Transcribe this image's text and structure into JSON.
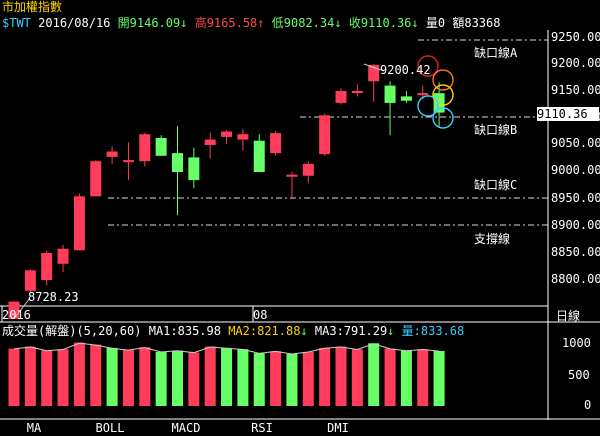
{
  "title": "市加權指數",
  "quote": {
    "symbol": "$TWT",
    "date": "2016/08/16",
    "open_label": "開",
    "open": "9146.09",
    "high_label": "高",
    "high": "9165.58",
    "low_label": "低",
    "low": "9082.34",
    "close_label": "收",
    "close": "9110.36",
    "volume_label": "量0",
    "amount_label": "額83368"
  },
  "price_axis": [
    "9250.00",
    "9200.00",
    "9150.00",
    "9100.00",
    "9050.00",
    "9000.00",
    "8950.00",
    "8900.00",
    "8850.00",
    "8800.00"
  ],
  "current_price": "9110.36",
  "annotations": {
    "gap_a": "缺口線A",
    "gap_b": "缺口線B",
    "gap_c": "缺口線C",
    "support": "支撐線",
    "peak": "9200.42",
    "low_point": "8728.23"
  },
  "x_axis": {
    "year": "2016",
    "month": "08"
  },
  "period": "日線",
  "volume_panel": {
    "title": "成交量(解盤)(5,20,60)",
    "ma1": "MA1:835.98",
    "ma2": "MA2:821.88",
    "ma3": "MA3:791.29",
    "vol": "量:833.68",
    "axis": [
      "1000",
      "500",
      "0"
    ]
  },
  "tabs": [
    "MA",
    "BOLL",
    "MACD",
    "RSI",
    "DMI"
  ],
  "colors": {
    "up": "#ff3c5a",
    "down": "#66ff66",
    "bg": "#000000",
    "accent": "#ffd400"
  },
  "chart_data": {
    "type": "candlestick",
    "ylim": [
      8700,
      9270
    ],
    "candles": [
      {
        "o": 8728,
        "h": 8760,
        "l": 8728,
        "c": 8760
      },
      {
        "o": 8780,
        "h": 8820,
        "l": 8775,
        "c": 8818
      },
      {
        "o": 8800,
        "h": 8855,
        "l": 8790,
        "c": 8850
      },
      {
        "o": 8830,
        "h": 8865,
        "l": 8815,
        "c": 8858
      },
      {
        "o": 8855,
        "h": 8960,
        "l": 8855,
        "c": 8955
      },
      {
        "o": 8955,
        "h": 9022,
        "l": 8955,
        "c": 9020
      },
      {
        "o": 9028,
        "h": 9048,
        "l": 9015,
        "c": 9038
      },
      {
        "o": 9020,
        "h": 9055,
        "l": 8985,
        "c": 9022
      },
      {
        "o": 9020,
        "h": 9073,
        "l": 9010,
        "c": 9070
      },
      {
        "o": 9063,
        "h": 9068,
        "l": 9035,
        "c": 9030
      },
      {
        "o": 9035,
        "h": 9085,
        "l": 8920,
        "c": 9000
      },
      {
        "o": 9027,
        "h": 9045,
        "l": 8970,
        "c": 8985
      },
      {
        "o": 9050,
        "h": 9073,
        "l": 9025,
        "c": 9060
      },
      {
        "o": 9065,
        "h": 9078,
        "l": 9052,
        "c": 9075
      },
      {
        "o": 9060,
        "h": 9080,
        "l": 9040,
        "c": 9070
      },
      {
        "o": 9058,
        "h": 9070,
        "l": 9000,
        "c": 9000
      },
      {
        "o": 9035,
        "h": 9075,
        "l": 9030,
        "c": 9072
      },
      {
        "o": 8995,
        "h": 9000,
        "l": 8950,
        "c": 8995
      },
      {
        "o": 8993,
        "h": 9020,
        "l": 8980,
        "c": 9015
      },
      {
        "o": 9033,
        "h": 9108,
        "l": 9030,
        "c": 9105
      },
      {
        "o": 9128,
        "h": 9155,
        "l": 9125,
        "c": 9150
      },
      {
        "o": 9150,
        "h": 9162,
        "l": 9140,
        "c": 9150
      },
      {
        "o": 9168,
        "h": 9200,
        "l": 9130,
        "c": 9198
      },
      {
        "o": 9160,
        "h": 9168,
        "l": 9068,
        "c": 9128
      },
      {
        "o": 9140,
        "h": 9150,
        "l": 9128,
        "c": 9132
      },
      {
        "o": 9143,
        "h": 9160,
        "l": 9135,
        "c": 9146
      },
      {
        "o": 9146,
        "h": 9166,
        "l": 9082,
        "c": 9110
      }
    ],
    "volume": [
      870,
      900,
      840,
      860,
      960,
      930,
      880,
      850,
      890,
      820,
      840,
      810,
      900,
      880,
      860,
      800,
      830,
      790,
      820,
      880,
      900,
      860,
      950,
      870,
      840,
      860,
      834
    ],
    "volume_up": [
      true,
      true,
      true,
      true,
      true,
      true,
      false,
      true,
      true,
      false,
      false,
      true,
      true,
      false,
      false,
      false,
      true,
      false,
      true,
      true,
      true,
      true,
      false,
      true,
      false,
      true,
      false
    ]
  }
}
